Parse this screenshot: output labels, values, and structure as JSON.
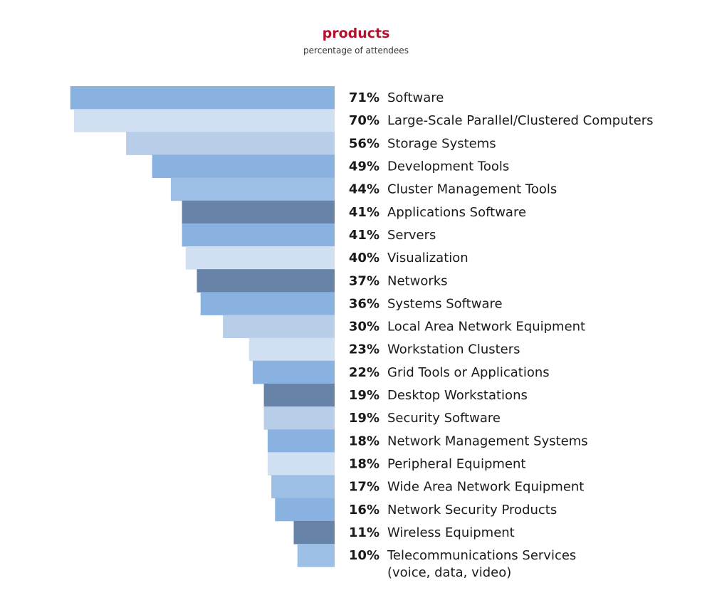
{
  "chart_data": {
    "type": "bar",
    "orientation": "horizontal",
    "title": "products",
    "subtitle": "percentage of attendees",
    "categories": [
      "Software",
      "Large-Scale Parallel/Clustered Computers",
      "Storage Systems",
      "Development Tools",
      "Cluster Management Tools",
      "Applications Software",
      "Servers",
      "Visualization",
      "Networks",
      "Systems Software",
      "Local Area Network Equipment",
      "Workstation Clusters",
      "Grid Tools or Applications",
      "Desktop Workstations",
      "Security Software",
      "Network Management Systems",
      "Peripheral Equipment",
      "Wide Area Network Equipment",
      "Network Security Products",
      "Wireless Equipment",
      "Telecommunications Services (voice, data, video)"
    ],
    "values": [
      71,
      70,
      56,
      49,
      44,
      41,
      41,
      40,
      37,
      36,
      30,
      23,
      22,
      19,
      19,
      18,
      18,
      17,
      16,
      11,
      10
    ],
    "value_labels": [
      "71%",
      "70%",
      "56%",
      "49%",
      "44%",
      "41%",
      "41%",
      "40%",
      "37%",
      "36%",
      "30%",
      "23%",
      "22%",
      "19%",
      "19%",
      "18%",
      "18%",
      "17%",
      "16%",
      "11%",
      "10%"
    ],
    "bar_colors": [
      "#8ab2e0",
      "#d0e0f2",
      "#b7cde8",
      "#8ab2e0",
      "#9dbfe5",
      "#6883a8",
      "#8ab2e0",
      "#d0e0f2",
      "#6883a8",
      "#8ab2e0",
      "#b7cde8",
      "#d0e0f2",
      "#8ab2e0",
      "#6883a8",
      "#b7cde8",
      "#8ab2e0",
      "#d0e0f2",
      "#9dbfe5",
      "#8ab2e0",
      "#6883a8",
      "#9dbfe5"
    ],
    "bar_alignment": "right",
    "xlim": [
      0,
      71
    ],
    "grid": false,
    "legend": "none"
  },
  "colors": {
    "title": "#b5122f",
    "text": "#1a1a1a"
  }
}
